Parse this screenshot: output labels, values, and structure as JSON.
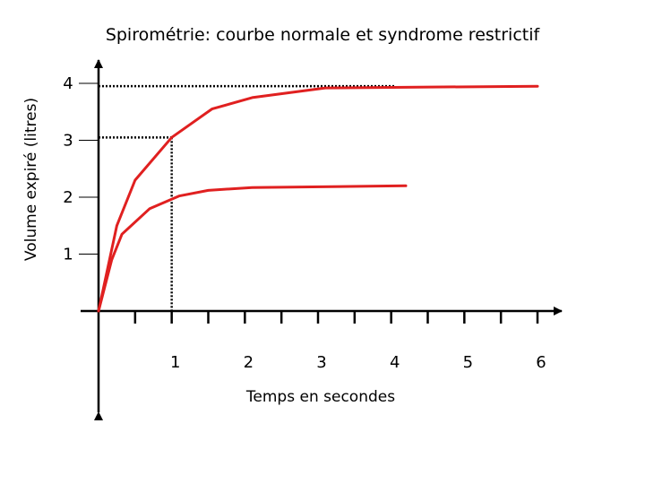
{
  "chart_data": {
    "type": "line",
    "title": "Spirométrie: courbe normale et syndrome restrictif",
    "xlabel": "Temps en secondes",
    "ylabel": "Volume expiré (litres)",
    "x_ticks": [
      "1",
      "2",
      "3",
      "4",
      "5",
      "6"
    ],
    "y_ticks": [
      "1",
      "2",
      "3",
      "4"
    ],
    "xlim": [
      0,
      6
    ],
    "ylim": [
      0,
      4
    ],
    "grid": false,
    "line_color": "#e02020",
    "series": [
      {
        "points": [
          [
            0,
            0
          ],
          [
            0.25,
            1.5
          ],
          [
            0.5,
            2.3
          ],
          [
            1,
            3.05
          ],
          [
            1.55,
            3.55
          ],
          [
            2.1,
            3.75
          ],
          [
            3.1,
            3.92
          ],
          [
            6,
            3.95
          ]
        ]
      },
      {
        "points": [
          [
            0,
            0
          ],
          [
            0.18,
            0.9
          ],
          [
            0.32,
            1.35
          ],
          [
            0.7,
            1.8
          ],
          [
            1.1,
            2.02
          ],
          [
            1.5,
            2.12
          ],
          [
            2.1,
            2.17
          ],
          [
            4.2,
            2.2
          ]
        ]
      }
    ],
    "reference_lines": [
      {
        "x": 1,
        "y": 3.05
      },
      {
        "x": 4.05,
        "y": 3.95
      }
    ]
  }
}
